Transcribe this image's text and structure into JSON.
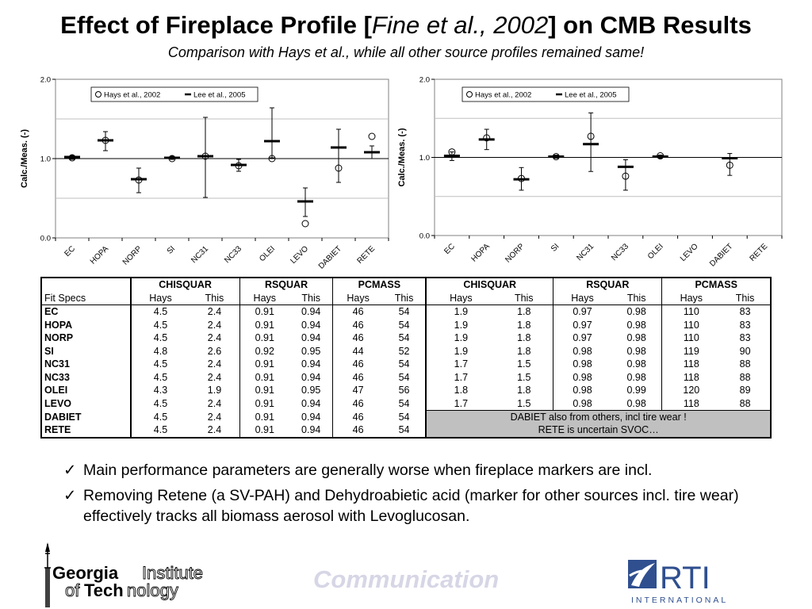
{
  "slide": {
    "title_pre": "Effect of Fireplace Profile [",
    "title_cite": "Fine et al., 2002",
    "title_post": "] on CMB Results",
    "subtitle": "Comparison with Hays et al., while all other source profiles remained same!"
  },
  "chart_data": [
    {
      "type": "scatter",
      "ylabel": "Calc./Meas. (-)",
      "ylim": [
        0.0,
        2.0
      ],
      "yticks": [
        "0.0",
        "1.0",
        "2.0"
      ],
      "categories": [
        "EC",
        "HOPA",
        "NORP",
        "SI",
        "NC31",
        "NC33",
        "OLEI",
        "LEVO",
        "DABIET",
        "RETE"
      ],
      "legend": [
        "Hays et al., 2002",
        "Lee et al., 2005"
      ],
      "legend_position": "top",
      "series": [
        {
          "name": "Hays et al., 2002",
          "marker": "circle",
          "values": [
            1.01,
            1.23,
            0.73,
            1.0,
            1.03,
            0.91,
            1.0,
            0.18,
            0.88,
            1.28
          ]
        },
        {
          "name": "Lee et al., 2005",
          "marker": "dash",
          "values": [
            1.02,
            1.23,
            0.74,
            1.01,
            1.03,
            0.92,
            1.22,
            0.46,
            1.14,
            1.08
          ],
          "err_low": [
            0.99,
            1.1,
            0.57,
            0.99,
            0.51,
            0.84,
            1.01,
            0.27,
            0.7,
            1.0
          ],
          "err_high": [
            1.04,
            1.34,
            0.88,
            1.03,
            1.52,
            0.99,
            1.64,
            0.63,
            1.37,
            1.16
          ]
        }
      ]
    },
    {
      "type": "scatter",
      "ylabel": "Calc./Meas. (-)",
      "ylim": [
        0.0,
        2.0
      ],
      "yticks": [
        "0.0",
        "1.0",
        "2.0"
      ],
      "categories": [
        "EC",
        "HOPA",
        "NORP",
        "SI",
        "NC31",
        "NC33",
        "OLEI",
        "LEVO",
        "DABIET",
        "RETE"
      ],
      "legend": [
        "Hays et al., 2002",
        "Lee et al., 2005"
      ],
      "legend_position": "top",
      "series": [
        {
          "name": "Hays et al., 2002",
          "marker": "circle",
          "values": [
            1.07,
            1.25,
            0.73,
            1.01,
            1.27,
            0.76,
            1.02,
            null,
            0.9,
            null
          ]
        },
        {
          "name": "Lee et al., 2005",
          "marker": "dash",
          "values": [
            1.02,
            1.23,
            0.72,
            1.01,
            1.17,
            0.88,
            1.01,
            null,
            0.99,
            null
          ],
          "err_low": [
            0.96,
            1.1,
            0.58,
            0.99,
            0.82,
            0.58,
            0.99,
            null,
            0.77,
            null
          ],
          "err_high": [
            1.07,
            1.36,
            0.87,
            1.03,
            1.57,
            0.97,
            1.03,
            null,
            1.05,
            null
          ]
        }
      ]
    }
  ],
  "table": {
    "groups": [
      "CHISQUAR",
      "RSQUAR",
      "PCMASS",
      "CHISQUAR",
      "RSQUAR",
      "PCMASS"
    ],
    "sub_label": "Fit Specs",
    "sub_headers": [
      "Hays",
      "This",
      "Hays",
      "This",
      "Hays",
      "This",
      "Hays",
      "This",
      "Hays",
      "This",
      "Hays",
      "This"
    ],
    "rows": [
      {
        "label": "EC",
        "values": [
          "4.5",
          "2.4",
          "0.91",
          "0.94",
          "46",
          "54",
          "1.9",
          "1.8",
          "0.97",
          "0.98",
          "110",
          "83"
        ]
      },
      {
        "label": "HOPA",
        "values": [
          "4.5",
          "2.4",
          "0.91",
          "0.94",
          "46",
          "54",
          "1.9",
          "1.8",
          "0.97",
          "0.98",
          "110",
          "83"
        ]
      },
      {
        "label": "NORP",
        "values": [
          "4.5",
          "2.4",
          "0.91",
          "0.94",
          "46",
          "54",
          "1.9",
          "1.8",
          "0.97",
          "0.98",
          "110",
          "83"
        ]
      },
      {
        "label": "SI",
        "values": [
          "4.8",
          "2.6",
          "0.92",
          "0.95",
          "44",
          "52",
          "1.9",
          "1.8",
          "0.98",
          "0.98",
          "119",
          "90"
        ]
      },
      {
        "label": "NC31",
        "values": [
          "4.5",
          "2.4",
          "0.91",
          "0.94",
          "46",
          "54",
          "1.7",
          "1.5",
          "0.98",
          "0.98",
          "118",
          "88"
        ]
      },
      {
        "label": "NC33",
        "values": [
          "4.5",
          "2.4",
          "0.91",
          "0.94",
          "46",
          "54",
          "1.7",
          "1.5",
          "0.98",
          "0.98",
          "118",
          "88"
        ]
      },
      {
        "label": "OLEI",
        "values": [
          "4.3",
          "1.9",
          "0.91",
          "0.95",
          "47",
          "56",
          "1.8",
          "1.8",
          "0.98",
          "0.99",
          "120",
          "89"
        ]
      },
      {
        "label": "LEVO",
        "values": [
          "4.5",
          "2.4",
          "0.91",
          "0.94",
          "46",
          "54",
          "1.7",
          "1.5",
          "0.98",
          "0.98",
          "118",
          "88"
        ]
      },
      {
        "label": "DABIET",
        "values": [
          "4.5",
          "2.4",
          "0.91",
          "0.94",
          "46",
          "54"
        ]
      },
      {
        "label": "RETE",
        "values": [
          "4.5",
          "2.4",
          "0.91",
          "0.94",
          "46",
          "54"
        ]
      }
    ],
    "note_lines": [
      "DABIET also from others, incl tire wear !",
      "RETE is uncertain SVOC…"
    ]
  },
  "bullets": [
    "Main performance parameters are generally worse when fireplace markers are incl.",
    "Removing Retene (a SV-PAH) and Dehydroabietic acid (marker for other sources incl. tire wear) effectively tracks all biomass aerosol with Levoglucosan."
  ],
  "footer": {
    "georgia_line1a": "Georgia",
    "georgia_line1b": "Institute",
    "georgia_line2a": "of",
    "georgia_line2b": "Tech",
    "georgia_line2c": "nology",
    "center": "Communication",
    "rti_name": "RTI",
    "rti_sub": "INTERNATIONAL"
  },
  "colors": {
    "plot_border": "#808080",
    "gridline": "#bfbfbf",
    "note_bg": "#c0c0c0",
    "watermark": "#d6d6e6",
    "rti_blue": "#2f4f8f"
  }
}
